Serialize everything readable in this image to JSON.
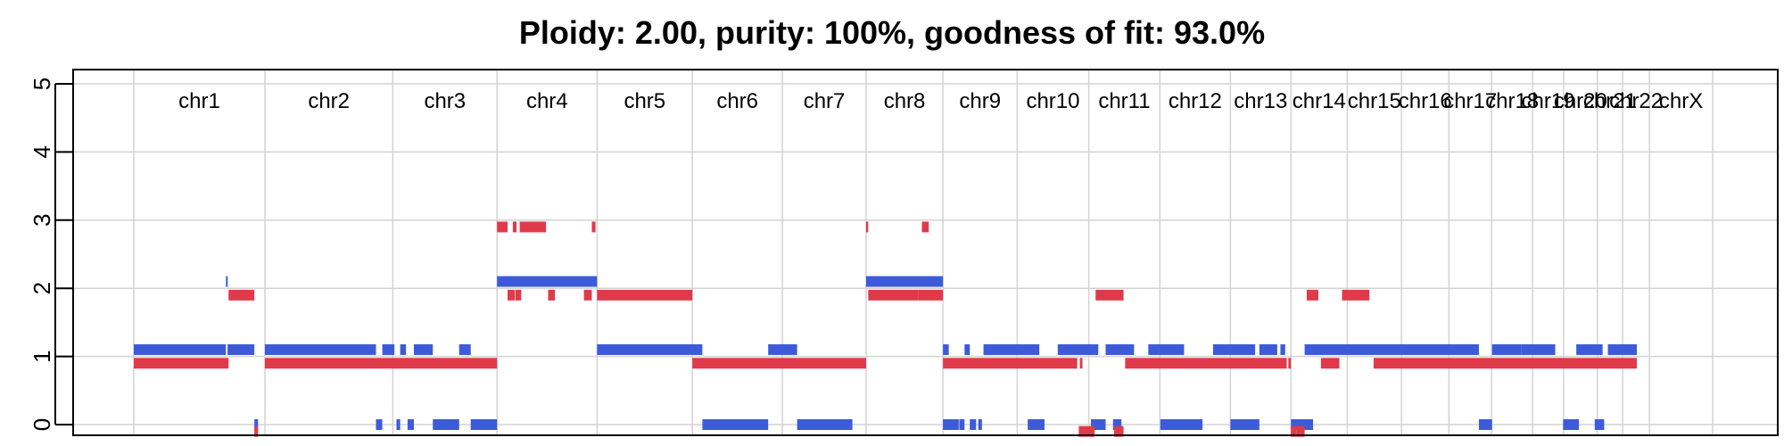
{
  "chart_data": {
    "type": "scatter",
    "title": "Ploidy: 2.00, purity: 100%, goodness of fit: 93.0%",
    "xlabel": "",
    "ylabel": "",
    "ylim": [
      0,
      5
    ],
    "y_ticks": [
      "0",
      "1",
      "2",
      "3",
      "4",
      "5"
    ],
    "grid": true,
    "colors": {
      "major_allele": "#3d5bd9",
      "minor_allele": "#e03a4a",
      "grid": "#d3d3d3",
      "axis": "#000000"
    },
    "chromosomes": [
      {
        "name": "chr1",
        "start": 0,
        "end": 249
      },
      {
        "name": "chr2",
        "start": 249,
        "end": 492
      },
      {
        "name": "chr3",
        "start": 492,
        "end": 690
      },
      {
        "name": "chr4",
        "start": 690,
        "end": 880
      },
      {
        "name": "chr5",
        "start": 880,
        "end": 1061
      },
      {
        "name": "chr6",
        "start": 1061,
        "end": 1232
      },
      {
        "name": "chr7",
        "start": 1232,
        "end": 1391
      },
      {
        "name": "chr8",
        "start": 1391,
        "end": 1537
      },
      {
        "name": "chr9",
        "start": 1537,
        "end": 1678
      },
      {
        "name": "chr10",
        "start": 1678,
        "end": 1814
      },
      {
        "name": "chr11",
        "start": 1814,
        "end": 1949
      },
      {
        "name": "chr12",
        "start": 1949,
        "end": 2083
      },
      {
        "name": "chr13",
        "start": 2083,
        "end": 2198
      },
      {
        "name": "chr14",
        "start": 2198,
        "end": 2305
      },
      {
        "name": "chr15",
        "start": 2305,
        "end": 2408
      },
      {
        "name": "chr16",
        "start": 2408,
        "end": 2498
      },
      {
        "name": "chr17",
        "start": 2498,
        "end": 2579
      },
      {
        "name": "chr18",
        "start": 2579,
        "end": 2657
      },
      {
        "name": "chr19",
        "start": 2657,
        "end": 2716
      },
      {
        "name": "chr20",
        "start": 2716,
        "end": 2780
      },
      {
        "name": "chr21",
        "start": 2780,
        "end": 2828
      },
      {
        "name": "chr22",
        "start": 2828,
        "end": 2879
      },
      {
        "name": "chrX",
        "start": 2879,
        "end": 2999
      }
    ],
    "series": [
      {
        "name": "",
        "color": "#3d5bd9",
        "segments": [
          [
            0,
            175,
            1.1
          ],
          [
            175,
            178,
            2.1
          ],
          [
            178,
            229,
            1.1
          ],
          [
            229,
            236,
            0
          ],
          [
            249,
            460,
            1.1
          ],
          [
            460,
            472,
            0
          ],
          [
            472,
            495,
            1.1
          ],
          [
            499,
            506,
            0
          ],
          [
            506,
            517,
            1.1
          ],
          [
            520,
            532,
            0
          ],
          [
            532,
            568,
            1.1
          ],
          [
            568,
            618,
            0
          ],
          [
            618,
            640,
            1.1
          ],
          [
            640,
            690,
            0
          ],
          [
            690,
            880,
            2.1
          ],
          [
            880,
            1080,
            1.1
          ],
          [
            1080,
            1205,
            0
          ],
          [
            1205,
            1260,
            1.1
          ],
          [
            1260,
            1365,
            0
          ],
          [
            1391,
            1537,
            2.1
          ],
          [
            1537,
            1548,
            1.1
          ],
          [
            1537,
            1567,
            0
          ],
          [
            1568,
            1578,
            0
          ],
          [
            1578,
            1588,
            1.1
          ],
          [
            1588,
            1600,
            0
          ],
          [
            1604,
            1611,
            0
          ],
          [
            1614,
            1720,
            1.1
          ],
          [
            1698,
            1730,
            0
          ],
          [
            1755,
            1832,
            1.1
          ],
          [
            1818,
            1846,
            0
          ],
          [
            1846,
            1900,
            1.1
          ],
          [
            1860,
            1876,
            0
          ],
          [
            1927,
            1995,
            1.1
          ],
          [
            1950,
            2030,
            0
          ],
          [
            2050,
            2130,
            1.1
          ],
          [
            2083,
            2138,
            0
          ],
          [
            2138,
            2172,
            1.1
          ],
          [
            2178,
            2187,
            1.1
          ],
          [
            2198,
            2240,
            0
          ],
          [
            2200,
            2230,
            0
          ],
          [
            2224,
            2555,
            1.1
          ],
          [
            2555,
            2580,
            0
          ],
          [
            2580,
            2635,
            1.1
          ],
          [
            2635,
            2700,
            1.1
          ],
          [
            2715,
            2745,
            0
          ],
          [
            2740,
            2790,
            1.1
          ],
          [
            2775,
            2793,
            0
          ],
          [
            2800,
            2855,
            1.1
          ]
        ]
      },
      {
        "name": "",
        "color": "#e03a4a",
        "segments": [
          [
            0,
            180,
            0.9
          ],
          [
            180,
            229,
            1.9
          ],
          [
            229,
            236,
            -0.1
          ],
          [
            249,
            690,
            0.9
          ],
          [
            690,
            710,
            2.9
          ],
          [
            710,
            724,
            1.9
          ],
          [
            720,
            727,
            2.9
          ],
          [
            725,
            736,
            1.9
          ],
          [
            733,
            783,
            2.9
          ],
          [
            787,
            800,
            1.9
          ],
          [
            855,
            870,
            1.9
          ],
          [
            870,
            877,
            2.9
          ],
          [
            880,
            1061,
            1.9
          ],
          [
            1061,
            1391,
            0.9
          ],
          [
            1391,
            1395,
            2.9
          ],
          [
            1395,
            1490,
            1.9
          ],
          [
            1497,
            1510,
            2.9
          ],
          [
            1490,
            1537,
            1.9
          ],
          [
            1537,
            1792,
            0.9
          ],
          [
            1797,
            1802,
            0.9
          ],
          [
            1795,
            1825,
            -0.1
          ],
          [
            1827,
            1880,
            1.9
          ],
          [
            1862,
            1880,
            -0.1
          ],
          [
            1883,
            2190,
            0.9
          ],
          [
            2193,
            2198,
            0.9
          ],
          [
            2198,
            2208,
            -0.1
          ],
          [
            2208,
            2224,
            -0.1
          ],
          [
            2228,
            2250,
            1.9
          ],
          [
            2255,
            2290,
            0.9
          ],
          [
            2295,
            2347,
            1.9
          ],
          [
            2355,
            2855,
            0.9
          ]
        ]
      }
    ]
  }
}
